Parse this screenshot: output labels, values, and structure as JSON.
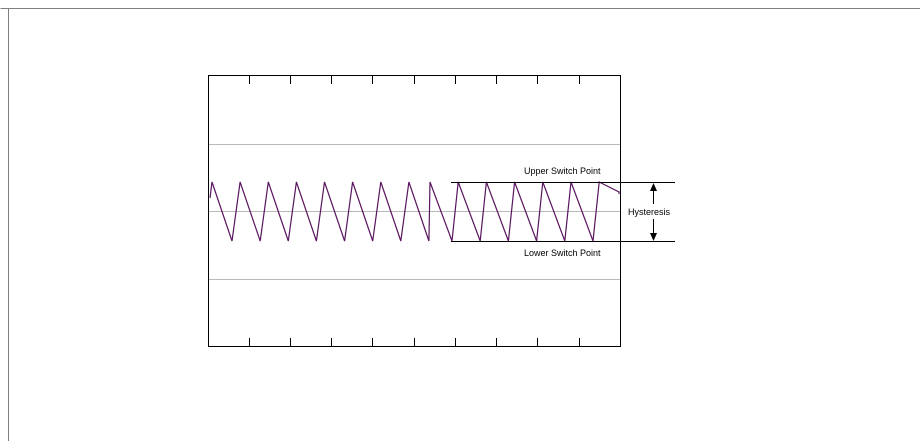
{
  "labels": {
    "upper": "Upper Switch Point",
    "lower": "Lower Switch Point",
    "hysteresis": "Hysteresis"
  },
  "colors": {
    "waveform": "#5a1560",
    "axes": "#000000",
    "gridlines": "#b8b8b8",
    "page_border": "#7f7f7f"
  },
  "signal": {
    "left_segment_cycles": 8,
    "right_segment_cycles": 6
  }
}
